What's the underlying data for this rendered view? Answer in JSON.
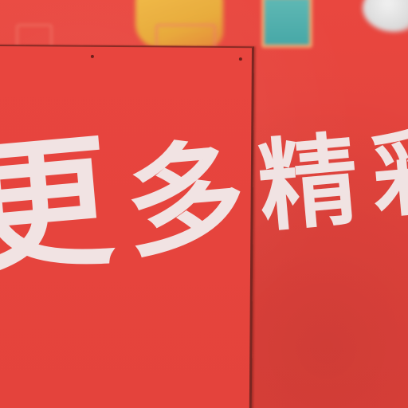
{
  "scene": {
    "description_type": "photo",
    "background_color": "#e5433e",
    "text_color": "#f2ecec"
  },
  "sign": {
    "characters": [
      "更",
      "多",
      "精",
      "彩"
    ]
  }
}
